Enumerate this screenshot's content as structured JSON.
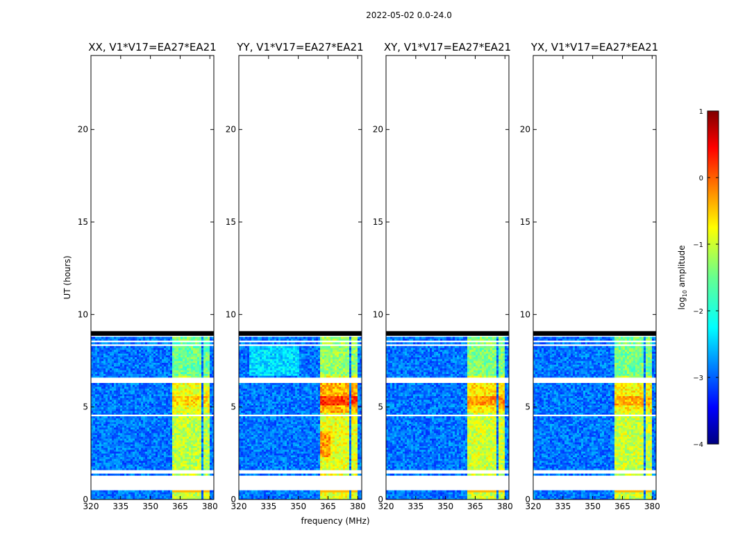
{
  "chart_data": {
    "type": "heatmap",
    "suptitle": "2022-05-02 0.0-24.0",
    "xlabel": "frequency (MHz)",
    "ylabel": "UT (hours)",
    "xlim": [
      320,
      382
    ],
    "ylim": [
      0,
      24
    ],
    "xticks": [
      320,
      335,
      350,
      365,
      380
    ],
    "yticks": [
      0,
      5,
      10,
      15,
      20
    ],
    "panels": [
      {
        "title": "XX, V1*V17=EA27*EA21",
        "strength": 0.45
      },
      {
        "title": "YY, V1*V17=EA27*EA21",
        "strength": 1.0
      },
      {
        "title": "XY, V1*V17=EA27*EA21",
        "strength": 0.7
      },
      {
        "title": "YX, V1*V17=EA27*EA21",
        "strength": 0.6
      }
    ],
    "data_extent_hours": [
      0,
      9.1
    ],
    "flagged_gaps_hours": [
      [
        0.45,
        1.3
      ],
      [
        1.45,
        1.6
      ],
      [
        4.45,
        4.6
      ],
      [
        6.35,
        6.55
      ],
      [
        8.3,
        8.45
      ],
      [
        8.55,
        8.65
      ],
      [
        8.85,
        9.1
      ]
    ],
    "rfi_bands_mhz": [
      [
        361.5,
        366
      ],
      [
        366.5,
        371
      ],
      [
        371.5,
        376
      ],
      [
        376.5,
        380
      ]
    ],
    "colorbar": {
      "label": "log10 amplitude",
      "ticks": [
        "1",
        "0",
        "−1",
        "−2",
        "−3",
        "−4"
      ],
      "range": [
        -4,
        1
      ],
      "colormap": "jet"
    }
  }
}
